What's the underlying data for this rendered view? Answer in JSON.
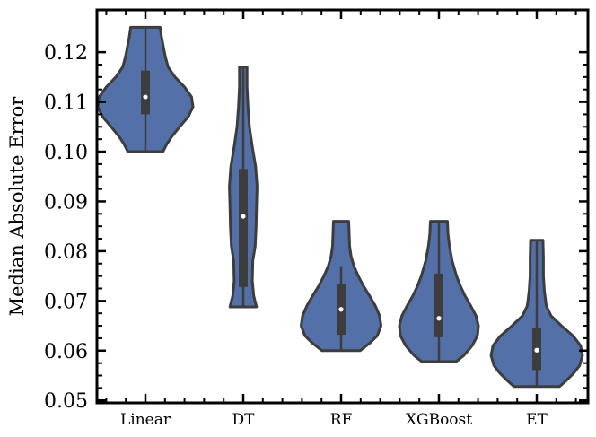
{
  "chart_data": {
    "type": "violin",
    "title": "",
    "xlabel": "",
    "ylabel": "Median Absolute Error",
    "ylim": [
      0.0495,
      0.1285
    ],
    "yticks": [
      0.05,
      0.06,
      0.07,
      0.08,
      0.09,
      0.1,
      0.11,
      0.12
    ],
    "ytick_labels": [
      "0.05",
      "0.06",
      "0.07",
      "0.08",
      "0.09",
      "0.10",
      "0.11",
      "0.12"
    ],
    "categories": [
      "Linear",
      "DT",
      "RF",
      "XGBoost",
      "ET"
    ],
    "fill_color": "#5470a8",
    "edge_color": "#3d3d3d",
    "series": [
      {
        "category": "Linear",
        "min": 0.1,
        "max": 0.125,
        "q1": 0.1075,
        "median": 0.111,
        "q3": 0.1163,
        "whisker_low": 0.1,
        "whisker_high": 0.125,
        "density": [
          [
            0.1,
            0.37
          ],
          [
            0.1015,
            0.45
          ],
          [
            0.103,
            0.55
          ],
          [
            0.105,
            0.72
          ],
          [
            0.107,
            0.9
          ],
          [
            0.109,
            1.0
          ],
          [
            0.111,
            0.97
          ],
          [
            0.113,
            0.82
          ],
          [
            0.115,
            0.62
          ],
          [
            0.117,
            0.48
          ],
          [
            0.119,
            0.42
          ],
          [
            0.121,
            0.38
          ],
          [
            0.123,
            0.34
          ],
          [
            0.125,
            0.31
          ]
        ]
      },
      {
        "category": "DT",
        "min": 0.0688,
        "max": 0.117,
        "q1": 0.0728,
        "median": 0.087,
        "q3": 0.0965,
        "whisker_low": 0.0688,
        "whisker_high": 0.117,
        "density": [
          [
            0.0688,
            0.28
          ],
          [
            0.071,
            0.22
          ],
          [
            0.074,
            0.19
          ],
          [
            0.078,
            0.2
          ],
          [
            0.081,
            0.25
          ],
          [
            0.085,
            0.27
          ],
          [
            0.089,
            0.28
          ],
          [
            0.093,
            0.29
          ],
          [
            0.097,
            0.26
          ],
          [
            0.101,
            0.19
          ],
          [
            0.105,
            0.13
          ],
          [
            0.109,
            0.1
          ],
          [
            0.113,
            0.08
          ],
          [
            0.117,
            0.08
          ]
        ]
      },
      {
        "category": "RF",
        "min": 0.06,
        "max": 0.086,
        "q1": 0.0632,
        "median": 0.0683,
        "q3": 0.0735,
        "whisker_low": 0.06,
        "whisker_high": 0.077,
        "density": [
          [
            0.06,
            0.4
          ],
          [
            0.0615,
            0.6
          ],
          [
            0.063,
            0.76
          ],
          [
            0.065,
            0.84
          ],
          [
            0.067,
            0.81
          ],
          [
            0.069,
            0.72
          ],
          [
            0.071,
            0.6
          ],
          [
            0.073,
            0.47
          ],
          [
            0.075,
            0.36
          ],
          [
            0.077,
            0.27
          ],
          [
            0.079,
            0.21
          ],
          [
            0.081,
            0.18
          ],
          [
            0.0835,
            0.17
          ],
          [
            0.086,
            0.16
          ]
        ]
      },
      {
        "category": "XGBoost",
        "min": 0.0578,
        "max": 0.086,
        "q1": 0.0627,
        "median": 0.0665,
        "q3": 0.0755,
        "whisker_low": 0.0578,
        "whisker_high": 0.086,
        "density": [
          [
            0.0578,
            0.36
          ],
          [
            0.059,
            0.52
          ],
          [
            0.061,
            0.7
          ],
          [
            0.063,
            0.81
          ],
          [
            0.065,
            0.83
          ],
          [
            0.067,
            0.78
          ],
          [
            0.069,
            0.67
          ],
          [
            0.071,
            0.55
          ],
          [
            0.073,
            0.45
          ],
          [
            0.075,
            0.37
          ],
          [
            0.078,
            0.28
          ],
          [
            0.081,
            0.22
          ],
          [
            0.0835,
            0.19
          ],
          [
            0.086,
            0.18
          ]
        ]
      },
      {
        "category": "ET",
        "min": 0.0528,
        "max": 0.0822,
        "q1": 0.0561,
        "median": 0.0601,
        "q3": 0.0645,
        "whisker_low": 0.0528,
        "whisker_high": 0.0822,
        "density": [
          [
            0.0528,
            0.48
          ],
          [
            0.054,
            0.62
          ],
          [
            0.0555,
            0.78
          ],
          [
            0.057,
            0.9
          ],
          [
            0.059,
            0.96
          ],
          [
            0.061,
            0.92
          ],
          [
            0.063,
            0.76
          ],
          [
            0.065,
            0.52
          ],
          [
            0.067,
            0.3
          ],
          [
            0.069,
            0.2
          ],
          [
            0.072,
            0.16
          ],
          [
            0.075,
            0.14
          ],
          [
            0.0785,
            0.14
          ],
          [
            0.0822,
            0.13
          ]
        ]
      }
    ]
  }
}
